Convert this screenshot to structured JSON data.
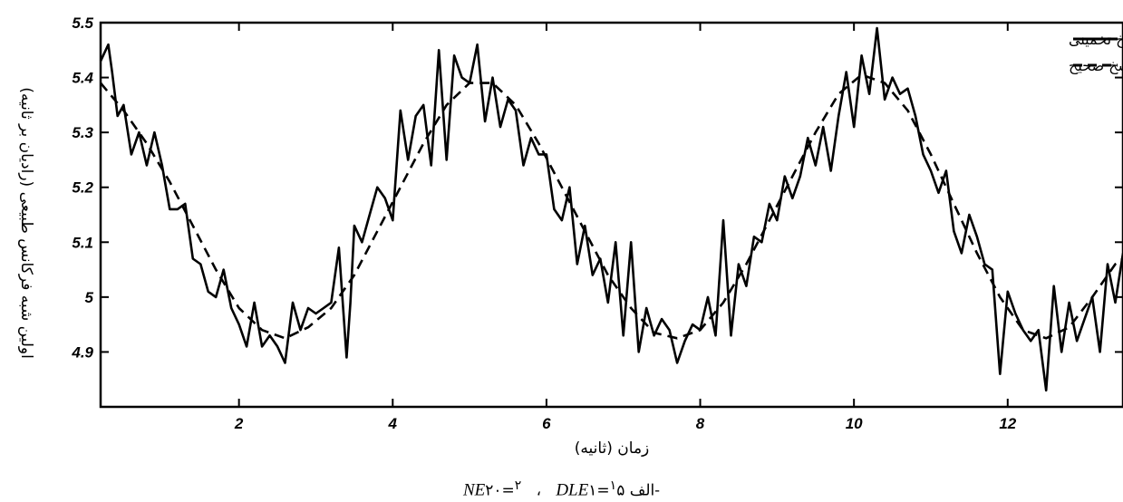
{
  "chart_data": {
    "type": "line",
    "xlabel": "زمان (ثانیه)",
    "ylabel": "اولین شبه فرکانس طبیعی (رادیان بر ثانیه)",
    "xlim": [
      0.2,
      13.5
    ],
    "ylim": [
      4.8,
      5.5
    ],
    "xticks": [
      2,
      4,
      6,
      8,
      10,
      12
    ],
    "yticks": [
      4.9,
      5,
      5.1,
      5.2,
      5.3,
      5.4,
      5.5
    ],
    "ytick_labels": [
      "4.9",
      "5",
      "5.1",
      "5.2",
      "5.3",
      "5.4",
      "5.5"
    ],
    "grid": false,
    "legend": "top-right",
    "series": [
      {
        "name": "پاسخ تخمینی",
        "style": "solid",
        "color": "#000000",
        "x": [
          0.2,
          0.3,
          0.35,
          0.42,
          0.5,
          0.6,
          0.7,
          0.8,
          0.9,
          1.0,
          1.1,
          1.2,
          1.3,
          1.4,
          1.5,
          1.6,
          1.7,
          1.8,
          1.9,
          2.0,
          2.1,
          2.2,
          2.3,
          2.4,
          2.5,
          2.6,
          2.7,
          2.8,
          2.9,
          3.0,
          3.1,
          3.2,
          3.3,
          3.4,
          3.45,
          3.5,
          3.6,
          3.7,
          3.8,
          3.9,
          4.0,
          4.1,
          4.2,
          4.3,
          4.4,
          4.5,
          4.6,
          4.7,
          4.8,
          4.9,
          5.0,
          5.1,
          5.2,
          5.3,
          5.4,
          5.5,
          5.6,
          5.7,
          5.8,
          5.9,
          6.0,
          6.1,
          6.2,
          6.3,
          6.4,
          6.5,
          6.6,
          6.7,
          6.8,
          6.9,
          7.0,
          7.1,
          7.2,
          7.3,
          7.4,
          7.5,
          7.6,
          7.7,
          7.8,
          7.9,
          8.0,
          8.1,
          8.2,
          8.3,
          8.4,
          8.5,
          8.6,
          8.7,
          8.8,
          8.9,
          9.0,
          9.1,
          9.2,
          9.3,
          9.4,
          9.5,
          9.6,
          9.7,
          9.8,
          9.9,
          10.0,
          10.1,
          10.2,
          10.3,
          10.4,
          10.5,
          10.6,
          10.7,
          10.8,
          10.9,
          11.0,
          11.1,
          11.2,
          11.3,
          11.4,
          11.5,
          11.6,
          11.7,
          11.8,
          11.9,
          12.0,
          12.1,
          12.2,
          12.3,
          12.4,
          12.5,
          12.6,
          12.7,
          12.8,
          12.9,
          13.0,
          13.1,
          13.2,
          13.3,
          13.4,
          13.5
        ],
        "y": [
          5.43,
          5.46,
          5.41,
          5.33,
          5.35,
          5.26,
          5.3,
          5.24,
          5.3,
          5.24,
          5.16,
          5.16,
          5.17,
          5.07,
          5.06,
          5.01,
          5.0,
          5.05,
          4.98,
          4.95,
          4.91,
          4.99,
          4.91,
          4.93,
          4.91,
          4.88,
          4.99,
          4.94,
          4.98,
          4.97,
          4.98,
          4.99,
          5.09,
          4.89,
          4.99,
          5.13,
          5.1,
          5.15,
          5.2,
          5.18,
          5.14,
          5.34,
          5.25,
          5.33,
          5.35,
          5.24,
          5.45,
          5.25,
          5.44,
          5.4,
          5.39,
          5.46,
          5.32,
          5.4,
          5.31,
          5.36,
          5.34,
          5.24,
          5.29,
          5.26,
          5.26,
          5.16,
          5.14,
          5.2,
          5.06,
          5.13,
          5.04,
          5.07,
          4.99,
          5.1,
          4.93,
          5.1,
          4.9,
          4.98,
          4.93,
          4.96,
          4.94,
          4.88,
          4.92,
          4.95,
          4.94,
          5.0,
          4.93,
          5.14,
          4.93,
          5.06,
          5.02,
          5.11,
          5.1,
          5.17,
          5.14,
          5.22,
          5.18,
          5.22,
          5.29,
          5.24,
          5.31,
          5.23,
          5.33,
          5.41,
          5.31,
          5.44,
          5.37,
          5.49,
          5.36,
          5.4,
          5.37,
          5.38,
          5.33,
          5.26,
          5.23,
          5.19,
          5.23,
          5.12,
          5.08,
          5.15,
          5.11,
          5.06,
          5.05,
          4.86,
          5.01,
          4.97,
          4.94,
          4.92,
          4.94,
          4.83,
          5.02,
          4.9,
          4.99,
          4.92,
          4.96,
          5.0,
          4.9,
          5.06,
          4.99,
          5.08
        ]
      },
      {
        "name": "پاسخ صحیح",
        "style": "dashed",
        "color": "#000000",
        "x": [
          0.2,
          0.5,
          0.8,
          1.1,
          1.4,
          1.7,
          2.0,
          2.3,
          2.6,
          2.9,
          3.2,
          3.5,
          3.8,
          4.1,
          4.4,
          4.7,
          5.0,
          5.3,
          5.6,
          5.9,
          6.2,
          6.5,
          6.8,
          7.1,
          7.4,
          7.7,
          8.0,
          8.3,
          8.6,
          8.9,
          9.2,
          9.5,
          9.8,
          10.1,
          10.4,
          10.7,
          11.0,
          11.3,
          11.6,
          11.9,
          12.2,
          12.5,
          12.8,
          13.1,
          13.4,
          13.5
        ],
        "y": [
          5.39,
          5.34,
          5.28,
          5.21,
          5.13,
          5.05,
          4.98,
          4.94,
          4.925,
          4.945,
          4.98,
          5.04,
          5.12,
          5.2,
          5.28,
          5.35,
          5.39,
          5.39,
          5.35,
          5.28,
          5.2,
          5.12,
          5.04,
          4.98,
          4.935,
          4.925,
          4.94,
          4.99,
          5.06,
          5.14,
          5.22,
          5.3,
          5.37,
          5.405,
          5.39,
          5.34,
          5.26,
          5.17,
          5.08,
          5.0,
          4.94,
          4.925,
          4.945,
          5.0,
          5.06,
          5.07
        ]
      }
    ]
  },
  "caption": {
    "part_label": "الف-",
    "dle_value": "١۵",
    "dle_text": "DLE",
    "dle_sup": "١",
    "separator": "،",
    "ne_value": "٢٠",
    "ne_text": "NE",
    "ne_sup": "٢"
  }
}
